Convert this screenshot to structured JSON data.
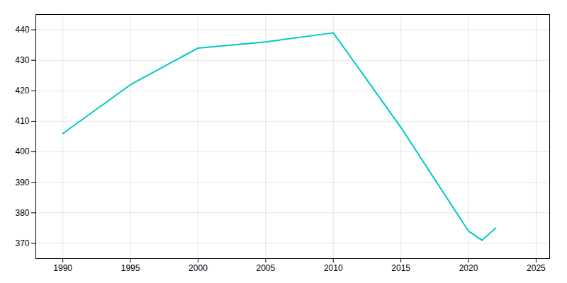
{
  "chart_data": {
    "type": "line",
    "x": [
      1990,
      1995,
      2000,
      2005,
      2010,
      2015,
      2020,
      2021,
      2022
    ],
    "values": [
      406,
      422,
      434,
      436,
      439,
      408,
      374,
      371,
      375
    ],
    "color": "#00C9C0",
    "xlim": [
      1988,
      2026
    ],
    "xticks": [
      1990,
      1995,
      2000,
      2005,
      2010,
      2015,
      2020,
      2025
    ],
    "ylim": [
      365,
      445
    ],
    "yticks": [
      370,
      380,
      390,
      400,
      410,
      420,
      430,
      440
    ],
    "grid": true
  }
}
